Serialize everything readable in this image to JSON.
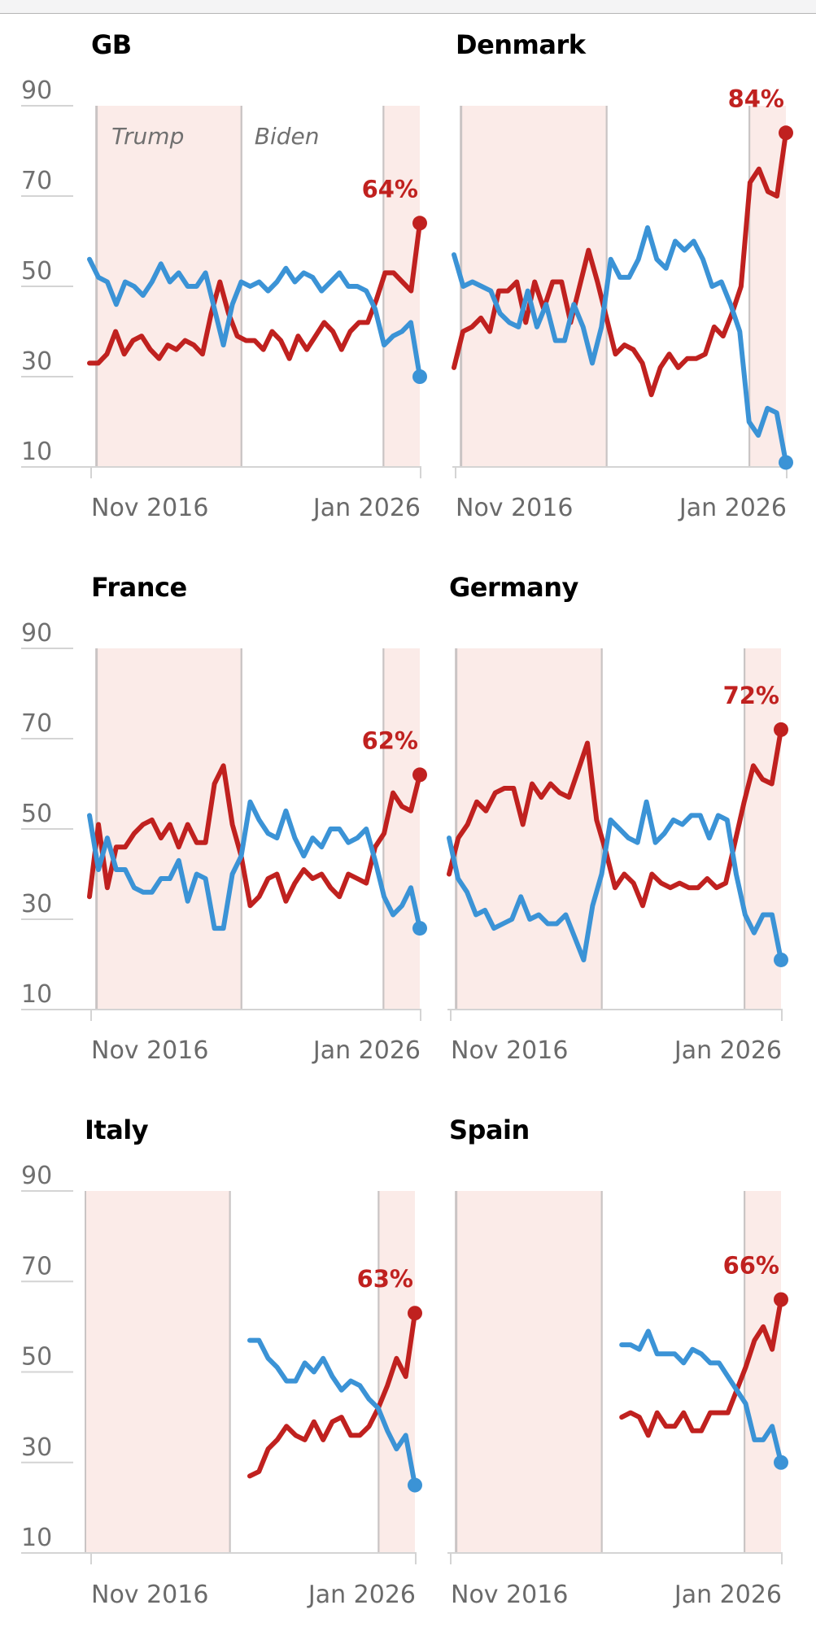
{
  "colors": {
    "red_series": "#c0211f",
    "blue_series": "#3b93d6",
    "trump_shade": "#fbebe8",
    "gridline": "#d4d4d4",
    "divider": "#c9c4c4"
  },
  "legend": {
    "trump_label": "Trump",
    "biden_label": "Biden"
  },
  "chart_data": [
    {
      "type": "line",
      "title": "GB",
      "yticks": [
        "90",
        "70",
        "50",
        "30",
        "10"
      ],
      "ylim": [
        10,
        90
      ],
      "xtick_labels": [
        "Nov 2016",
        "Jan 2026"
      ],
      "end_label": "64%",
      "periods": [
        {
          "name": "Trump",
          "start": 0.02,
          "end": 0.46,
          "shaded": true
        },
        {
          "name": "Biden",
          "start": 0.46,
          "end": 0.89,
          "shaded": false
        },
        {
          "name": "Trump",
          "start": 0.89,
          "end": 1.0,
          "shaded": true
        }
      ],
      "series": [
        {
          "name": "red",
          "start": 0.0,
          "values": [
            33,
            33,
            35,
            40,
            35,
            38,
            39,
            36,
            34,
            37,
            36,
            38,
            37,
            35,
            44,
            51,
            44,
            39,
            38,
            38,
            36,
            40,
            38,
            34,
            39,
            36,
            39,
            42,
            40,
            36,
            40,
            42,
            42,
            47,
            53,
            53,
            51,
            49,
            64
          ]
        },
        {
          "name": "blue",
          "start": 0.0,
          "values": [
            56,
            52,
            51,
            46,
            51,
            50,
            48,
            51,
            55,
            51,
            53,
            50,
            50,
            53,
            45,
            37,
            46,
            51,
            50,
            51,
            49,
            51,
            54,
            51,
            53,
            52,
            49,
            51,
            53,
            50,
            50,
            49,
            45,
            37,
            39,
            40,
            42,
            30
          ]
        }
      ]
    },
    {
      "type": "line",
      "title": "Denmark",
      "yticks": [],
      "ylim": [
        10,
        90
      ],
      "xtick_labels": [
        "Nov 2016",
        "Jan 2026"
      ],
      "end_label": "84%",
      "periods": [
        {
          "name": "Trump",
          "start": 0.02,
          "end": 0.46,
          "shaded": true
        },
        {
          "name": "Biden",
          "start": 0.46,
          "end": 0.89,
          "shaded": false
        },
        {
          "name": "Trump",
          "start": 0.89,
          "end": 1.0,
          "shaded": true
        }
      ],
      "series": [
        {
          "name": "red",
          "start": 0.0,
          "values": [
            32,
            40,
            41,
            43,
            40,
            49,
            49,
            51,
            42,
            51,
            45,
            51,
            51,
            42,
            50,
            58,
            51,
            43,
            35,
            37,
            36,
            33,
            26,
            32,
            35,
            32,
            34,
            34,
            35,
            41,
            39,
            44,
            50,
            73,
            76,
            71,
            70,
            84
          ]
        },
        {
          "name": "blue",
          "start": 0.0,
          "values": [
            57,
            50,
            51,
            50,
            49,
            44,
            42,
            41,
            49,
            41,
            46,
            38,
            38,
            46,
            41,
            33,
            41,
            56,
            52,
            52,
            56,
            63,
            56,
            54,
            60,
            58,
            60,
            56,
            50,
            51,
            46,
            40,
            20,
            17,
            23,
            22,
            11
          ]
        }
      ]
    },
    {
      "type": "line",
      "title": "France",
      "yticks": [
        "90",
        "70",
        "50",
        "30",
        "10"
      ],
      "ylim": [
        10,
        90
      ],
      "xtick_labels": [
        "Nov 2016",
        "Jan 2026"
      ],
      "end_label": "62%",
      "periods": [
        {
          "name": "Trump",
          "start": 0.02,
          "end": 0.46,
          "shaded": true
        },
        {
          "name": "Biden",
          "start": 0.46,
          "end": 0.89,
          "shaded": false
        },
        {
          "name": "Trump",
          "start": 0.89,
          "end": 1.0,
          "shaded": true
        }
      ],
      "series": [
        {
          "name": "red",
          "start": 0.0,
          "values": [
            35,
            51,
            37,
            46,
            46,
            49,
            51,
            52,
            48,
            51,
            46,
            51,
            47,
            47,
            60,
            64,
            51,
            44,
            33,
            35,
            39,
            40,
            34,
            38,
            41,
            39,
            40,
            37,
            35,
            40,
            39,
            38,
            46,
            49,
            58,
            55,
            54,
            62
          ]
        },
        {
          "name": "blue",
          "start": 0.0,
          "values": [
            53,
            41,
            48,
            41,
            41,
            37,
            36,
            36,
            39,
            39,
            43,
            34,
            40,
            39,
            28,
            28,
            40,
            44,
            56,
            52,
            49,
            48,
            54,
            48,
            44,
            48,
            46,
            50,
            50,
            47,
            48,
            50,
            43,
            35,
            31,
            33,
            37,
            28
          ]
        }
      ]
    },
    {
      "type": "line",
      "title": "Germany",
      "yticks": [],
      "ylim": [
        10,
        90
      ],
      "xtick_labels": [
        "Nov 2016",
        "Jan 2026"
      ],
      "end_label": "72%",
      "periods": [
        {
          "name": "Trump",
          "start": 0.02,
          "end": 0.46,
          "shaded": true
        },
        {
          "name": "Biden",
          "start": 0.46,
          "end": 0.89,
          "shaded": false
        },
        {
          "name": "Trump",
          "start": 0.89,
          "end": 1.0,
          "shaded": true
        }
      ],
      "series": [
        {
          "name": "red",
          "start": 0.0,
          "values": [
            40,
            48,
            51,
            56,
            54,
            58,
            59,
            59,
            51,
            60,
            57,
            60,
            58,
            57,
            63,
            69,
            52,
            45,
            37,
            40,
            38,
            33,
            40,
            38,
            37,
            38,
            37,
            37,
            39,
            37,
            38,
            47,
            56,
            64,
            61,
            60,
            72
          ]
        },
        {
          "name": "blue",
          "start": 0.0,
          "values": [
            48,
            39,
            36,
            31,
            32,
            28,
            29,
            30,
            35,
            30,
            31,
            29,
            29,
            31,
            26,
            21,
            33,
            40,
            52,
            50,
            48,
            47,
            56,
            47,
            49,
            52,
            51,
            53,
            53,
            48,
            53,
            52,
            40,
            31,
            27,
            31,
            31,
            21
          ]
        }
      ]
    },
    {
      "type": "line",
      "title": "Italy",
      "yticks": [
        "90",
        "70",
        "50",
        "30",
        "10"
      ],
      "ylim": [
        10,
        90
      ],
      "xtick_labels": [
        "Nov 2016",
        "Jan 2026"
      ],
      "end_label": "63%",
      "periods": [
        {
          "name": "Trump",
          "start": 0.0,
          "end": 0.44,
          "shaded": true
        },
        {
          "name": "Biden",
          "start": 0.44,
          "end": 0.89,
          "shaded": false
        },
        {
          "name": "Trump",
          "start": 0.89,
          "end": 1.0,
          "shaded": true
        }
      ],
      "series": [
        {
          "name": "red",
          "start": 0.5,
          "values": [
            27,
            28,
            33,
            35,
            38,
            36,
            35,
            39,
            35,
            39,
            40,
            36,
            36,
            38,
            42,
            47,
            53,
            49,
            63
          ]
        },
        {
          "name": "blue",
          "start": 0.5,
          "values": [
            57,
            57,
            53,
            51,
            48,
            48,
            52,
            50,
            53,
            49,
            46,
            48,
            47,
            44,
            42,
            37,
            33,
            36,
            25
          ]
        }
      ]
    },
    {
      "type": "line",
      "title": "Spain",
      "yticks": [],
      "ylim": [
        10,
        90
      ],
      "xtick_labels": [
        "Nov 2016",
        "Jan 2026"
      ],
      "end_label": "66%",
      "periods": [
        {
          "name": "Trump",
          "start": 0.02,
          "end": 0.46,
          "shaded": true
        },
        {
          "name": "Biden",
          "start": 0.46,
          "end": 0.89,
          "shaded": false
        },
        {
          "name": "Trump",
          "start": 0.89,
          "end": 1.0,
          "shaded": true
        }
      ],
      "series": [
        {
          "name": "red",
          "start": 0.52,
          "values": [
            40,
            41,
            40,
            36,
            41,
            38,
            38,
            41,
            37,
            37,
            41,
            41,
            41,
            46,
            51,
            57,
            60,
            55,
            66
          ]
        },
        {
          "name": "blue",
          "start": 0.52,
          "values": [
            56,
            56,
            55,
            59,
            54,
            54,
            54,
            52,
            55,
            54,
            52,
            52,
            49,
            46,
            43,
            35,
            35,
            38,
            30
          ]
        }
      ]
    }
  ]
}
